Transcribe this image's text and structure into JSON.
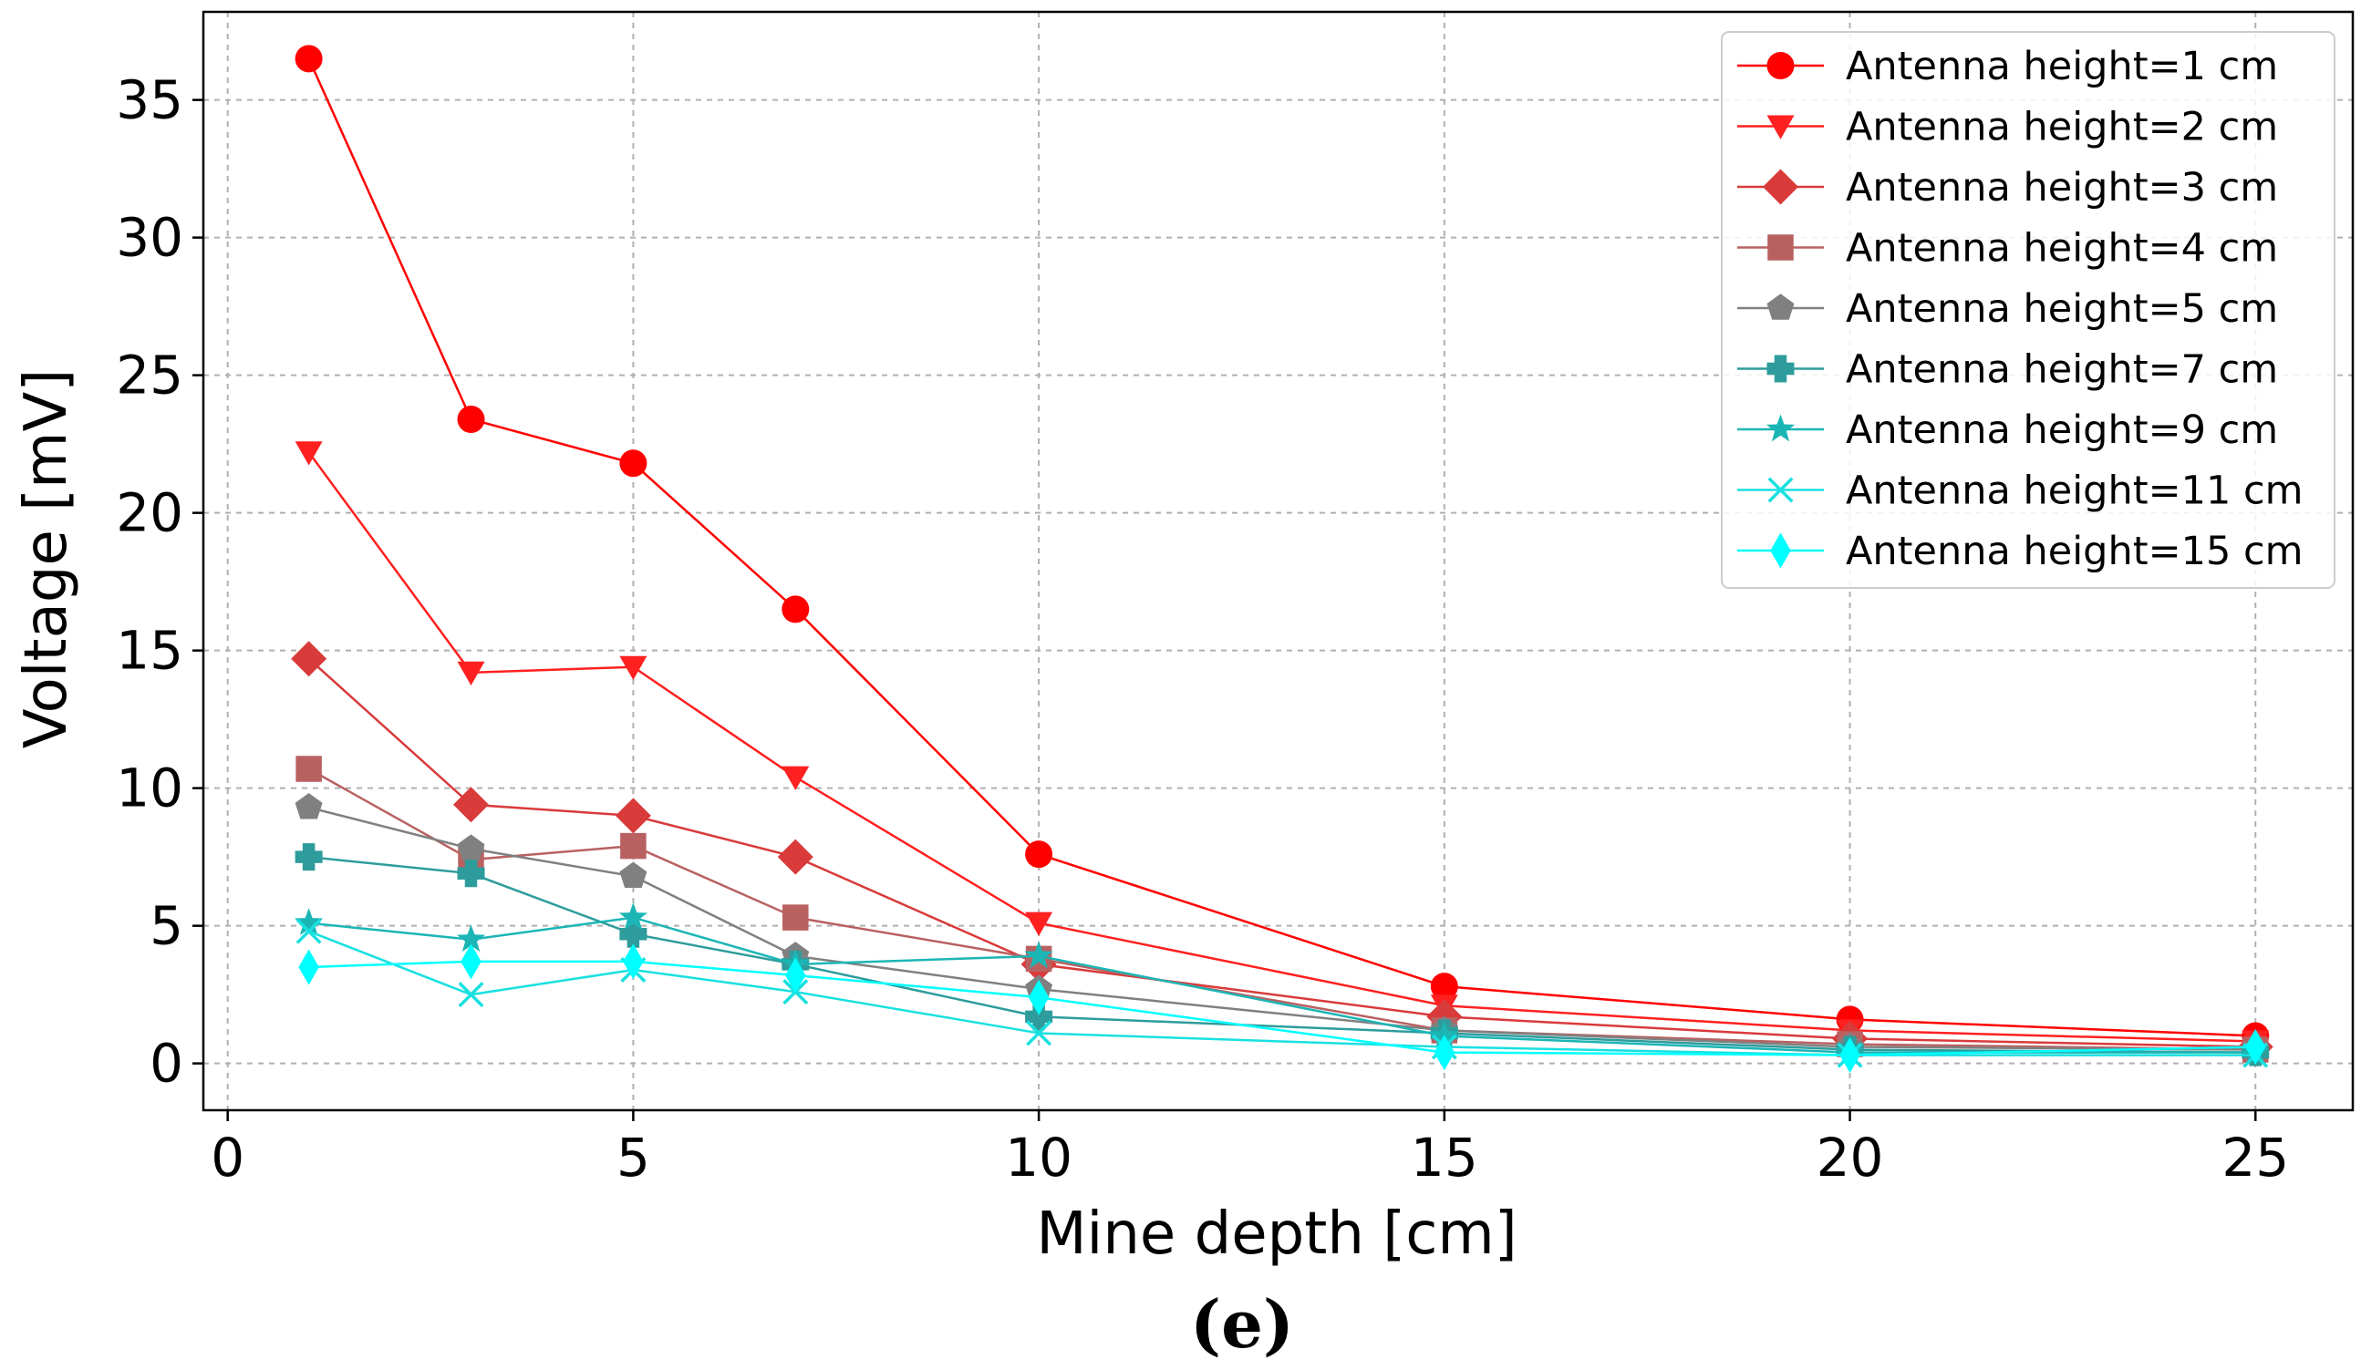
{
  "chart_data": {
    "type": "line",
    "title": "",
    "xlabel": "Mine depth [cm]",
    "ylabel": "Voltage [mV]",
    "panel_label": "(e)",
    "xlim": [
      -0.3,
      26.2
    ],
    "ylim": [
      -1.7,
      38.2
    ],
    "xticks": [
      0,
      5,
      10,
      15,
      20,
      25
    ],
    "yticks": [
      0,
      5,
      10,
      15,
      20,
      25,
      30,
      35
    ],
    "grid": true,
    "legend_position": "top-right",
    "x": [
      1,
      3,
      5,
      7,
      10,
      15,
      20,
      25
    ],
    "series": [
      {
        "name": "Antenna height=1 cm",
        "color": "#ff0000",
        "marker": "circle",
        "values": [
          36.5,
          23.4,
          21.8,
          16.5,
          7.6,
          2.8,
          1.6,
          1.0
        ]
      },
      {
        "name": "Antenna height=2 cm",
        "color": "#ff2020",
        "marker": "triangle-down",
        "values": [
          22.2,
          14.2,
          14.4,
          10.4,
          5.1,
          2.1,
          1.2,
          0.8
        ]
      },
      {
        "name": "Antenna height=3 cm",
        "color": "#d93a3a",
        "marker": "diamond",
        "values": [
          14.7,
          9.4,
          9.0,
          7.5,
          3.6,
          1.7,
          0.9,
          0.6
        ]
      },
      {
        "name": "Antenna height=4 cm",
        "color": "#b96161",
        "marker": "square",
        "values": [
          10.7,
          7.4,
          7.9,
          5.3,
          3.8,
          1.2,
          0.7,
          0.5
        ]
      },
      {
        "name": "Antenna height=5 cm",
        "color": "#808080",
        "marker": "pentagon",
        "values": [
          9.3,
          7.8,
          6.8,
          3.9,
          2.7,
          1.2,
          0.6,
          0.5
        ]
      },
      {
        "name": "Antenna height=7 cm",
        "color": "#2e9c9c",
        "marker": "plus",
        "values": [
          7.5,
          6.9,
          4.7,
          3.6,
          1.7,
          1.1,
          0.5,
          0.4
        ]
      },
      {
        "name": "Antenna height=9 cm",
        "color": "#1cb5b5",
        "marker": "star",
        "values": [
          5.1,
          4.5,
          5.3,
          3.6,
          3.9,
          1.0,
          0.4,
          0.4
        ]
      },
      {
        "name": "Antenna height=11 cm",
        "color": "#19e0e0",
        "marker": "x",
        "values": [
          4.8,
          2.5,
          3.4,
          2.6,
          1.1,
          0.6,
          0.3,
          0.3
        ]
      },
      {
        "name": "Antenna height=15 cm",
        "color": "#00ffff",
        "marker": "thin-diamond",
        "values": [
          3.5,
          3.7,
          3.7,
          3.2,
          2.4,
          0.4,
          0.3,
          0.6
        ]
      }
    ]
  }
}
